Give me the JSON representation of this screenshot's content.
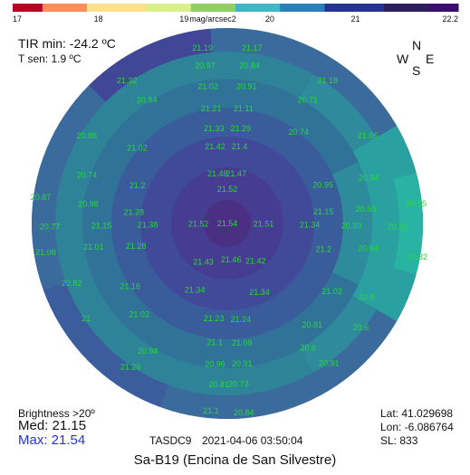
{
  "colorbar": {
    "min": 17,
    "max": 22.2,
    "unit_label": "mag/arcsec2",
    "tick_labels": [
      "17",
      "18",
      "19",
      "20",
      "21",
      "22.2"
    ],
    "tick_values": [
      17,
      18,
      19,
      20,
      21,
      22.2
    ]
  },
  "top_left": {
    "tir_min": "TIR min: -24.2 ºC",
    "t_sen": "T sen: 1.9 ºC"
  },
  "compass": {
    "n": "N",
    "w": "W",
    "e": "E",
    "s": "S"
  },
  "bottom_left": {
    "brightness_label": "Brightness >20º",
    "med": "Med: 21.15",
    "max": "Max: 21.54"
  },
  "bottom_right": {
    "lat": "Lat: 41.029698",
    "lon": "Lon: -6.086764",
    "sl": "SL:  833"
  },
  "footer": {
    "device": "TASDC9",
    "datetime": "2021-04-06  03:50:04",
    "site": "Sa-B19 (Encina de San Silvestre)"
  },
  "chart_data": {
    "type": "heatmap",
    "projection": "polar sky map (zenith at center)",
    "unit": "mag/arcsec2",
    "color_scale": [
      "#b40426",
      "#fc8d59",
      "#fee08b",
      "#d9ef8b",
      "#91cf60",
      "#41b6c4",
      "#2c7fb8",
      "#253494",
      "#2d1e5c",
      "#3b0f70"
    ],
    "zenith": {
      "value": 21.54
    },
    "rings": [
      {
        "label_values": [
          21.52,
          21.51,
          21.47,
          21.42,
          21.46,
          21.43,
          21.52,
          21.38,
          21.48
        ],
        "color": "#4a3f96"
      },
      {
        "label_values": [
          21.4,
          21.29,
          21.15,
          21.34,
          21.2,
          21.42,
          21.34,
          21.23,
          21.34,
          21.16,
          21.28,
          21.15,
          21.28,
          21.2,
          21.33,
          21.42
        ],
        "color": "#3f4e9b"
      },
      {
        "label_values": [
          21.11,
          20.95,
          20.93,
          21.02,
          21.24,
          21.09,
          21.1,
          21.02,
          21.01,
          20.98,
          21.02,
          21.21
        ],
        "color": "#37679d"
      },
      {
        "label_values": [
          20.91,
          20.74,
          20.63,
          20.64,
          20.81,
          20.91,
          20.96,
          20.94,
          20.82,
          20.77,
          20.74,
          20.94,
          21.02
        ],
        "color": "#2f7c9c"
      },
      {
        "label_values": [
          20.84,
          20.71,
          20.54,
          20.23,
          20.63,
          20.6,
          20.73,
          20.81,
          21.0,
          21.08,
          20.87,
          20.86,
          20.97
        ],
        "color": "#2a8f98"
      },
      {
        "label_values": [
          21.17,
          21.18,
          21.08,
          20.55,
          20.32,
          20.5,
          20.91,
          20.84,
          21.1,
          21.26,
          21.32,
          21.19
        ],
        "color": "#3a6f9a"
      }
    ],
    "labels": [
      {
        "v": "21.19",
        "r": 196,
        "a": 98
      },
      {
        "v": "21.17",
        "r": 196,
        "a": 82
      },
      {
        "v": "20.97",
        "r": 176,
        "a": 98
      },
      {
        "v": "20.84",
        "r": 176,
        "a": 82
      },
      {
        "v": "21.32",
        "r": 193,
        "a": 125
      },
      {
        "v": "21.18",
        "r": 193,
        "a": 55
      },
      {
        "v": "21.02",
        "r": 153,
        "a": 98
      },
      {
        "v": "20.91",
        "r": 153,
        "a": 82
      },
      {
        "v": "20.94",
        "r": 163,
        "a": 123
      },
      {
        "v": "20.71",
        "r": 163,
        "a": 57
      },
      {
        "v": "21.21",
        "r": 128,
        "a": 98
      },
      {
        "v": "21.11",
        "r": 128,
        "a": 82
      },
      {
        "v": "20.86",
        "r": 183,
        "a": 148
      },
      {
        "v": "20.74",
        "r": 128,
        "a": 52
      },
      {
        "v": "21.06",
        "r": 183,
        "a": 32
      },
      {
        "v": "21.02",
        "r": 130,
        "a": 140
      },
      {
        "v": "21.33",
        "r": 106,
        "a": 98
      },
      {
        "v": "21.29",
        "r": 106,
        "a": 82
      },
      {
        "v": "20.74",
        "r": 164,
        "a": 161
      },
      {
        "v": "21.2",
        "r": 108,
        "a": 157
      },
      {
        "v": "21.42",
        "r": 86,
        "a": 99
      },
      {
        "v": "21.4",
        "r": 86,
        "a": 81
      },
      {
        "v": "20.95",
        "r": 114,
        "a": 22
      },
      {
        "v": "20.54",
        "r": 164,
        "a": 18
      },
      {
        "v": "20.87",
        "r": 208,
        "a": 172
      },
      {
        "v": "20.98",
        "r": 155,
        "a": 172
      },
      {
        "v": "21.28",
        "r": 104,
        "a": 173
      },
      {
        "v": "21.48",
        "r": 56,
        "a": 101
      },
      {
        "v": "21.52",
        "r": 38,
        "a": 90
      },
      {
        "v": "21.47",
        "r": 56,
        "a": 80
      },
      {
        "v": "21.15",
        "r": 107,
        "a": 7
      },
      {
        "v": "20.63",
        "r": 154,
        "a": 6
      },
      {
        "v": "20.55",
        "r": 210,
        "a": 6
      },
      {
        "v": "20.77",
        "r": 196,
        "a": 181
      },
      {
        "v": "21.15",
        "r": 139,
        "a": 181
      },
      {
        "v": "21.38",
        "r": 88,
        "a": 181
      },
      {
        "v": "21.52",
        "r": 32,
        "a": 181
      },
      {
        "v": "21.54",
        "r": 0,
        "a": 0
      },
      {
        "v": "21.51",
        "r": 40,
        "a": -1
      },
      {
        "v": "21.34",
        "r": 91,
        "a": -1
      },
      {
        "v": "20.93",
        "r": 137,
        "a": -1
      },
      {
        "v": "20.23",
        "r": 188,
        "a": -1
      },
      {
        "v": "21.08",
        "r": 203,
        "a": 189
      },
      {
        "v": "21.01",
        "r": 150,
        "a": 190
      },
      {
        "v": "21.28",
        "r": 104,
        "a": 194
      },
      {
        "v": "21.43",
        "r": 50,
        "a": 238
      },
      {
        "v": "21.46",
        "r": 40,
        "a": 276
      },
      {
        "v": "21.42",
        "r": 52,
        "a": 307
      },
      {
        "v": "21.2",
        "r": 110,
        "a": 345
      },
      {
        "v": "20.64",
        "r": 158,
        "a": 350
      },
      {
        "v": "20.32",
        "r": 213,
        "a": 350
      },
      {
        "v": "20.82",
        "r": 184,
        "a": 201
      },
      {
        "v": "21.16",
        "r": 128,
        "a": 213
      },
      {
        "v": "21.34",
        "r": 82,
        "a": 244
      },
      {
        "v": "21.34",
        "r": 84,
        "a": 295
      },
      {
        "v": "21.02",
        "r": 138,
        "a": 327
      },
      {
        "v": "20.5",
        "r": 174,
        "a": 332
      },
      {
        "v": "21.23",
        "r": 106,
        "a": 262
      },
      {
        "v": "21.24",
        "r": 107,
        "a": 278
      },
      {
        "v": "21.02",
        "r": 140,
        "a": 226
      },
      {
        "v": "21",
        "r": 188,
        "a": 214
      },
      {
        "v": "21.1",
        "r": 132,
        "a": 264
      },
      {
        "v": "21.09",
        "r": 133,
        "a": 277
      },
      {
        "v": "20.81",
        "r": 146,
        "a": 310
      },
      {
        "v": "20.6",
        "r": 187,
        "a": 322
      },
      {
        "v": "20.94",
        "r": 166,
        "a": 238
      },
      {
        "v": "20.96",
        "r": 156,
        "a": 265
      },
      {
        "v": "20.91",
        "r": 156,
        "a": 276
      },
      {
        "v": "20.6",
        "r": 164,
        "a": 303
      },
      {
        "v": "21.26",
        "r": 191,
        "a": 236
      },
      {
        "v": "20.81",
        "r": 178,
        "a": 267
      },
      {
        "v": "20.73",
        "r": 178,
        "a": 274
      },
      {
        "v": "20.91",
        "r": 191,
        "a": 306
      },
      {
        "v": "21.1",
        "r": 208,
        "a": 265
      },
      {
        "v": "20.84",
        "r": 210,
        "a": 275
      }
    ]
  }
}
